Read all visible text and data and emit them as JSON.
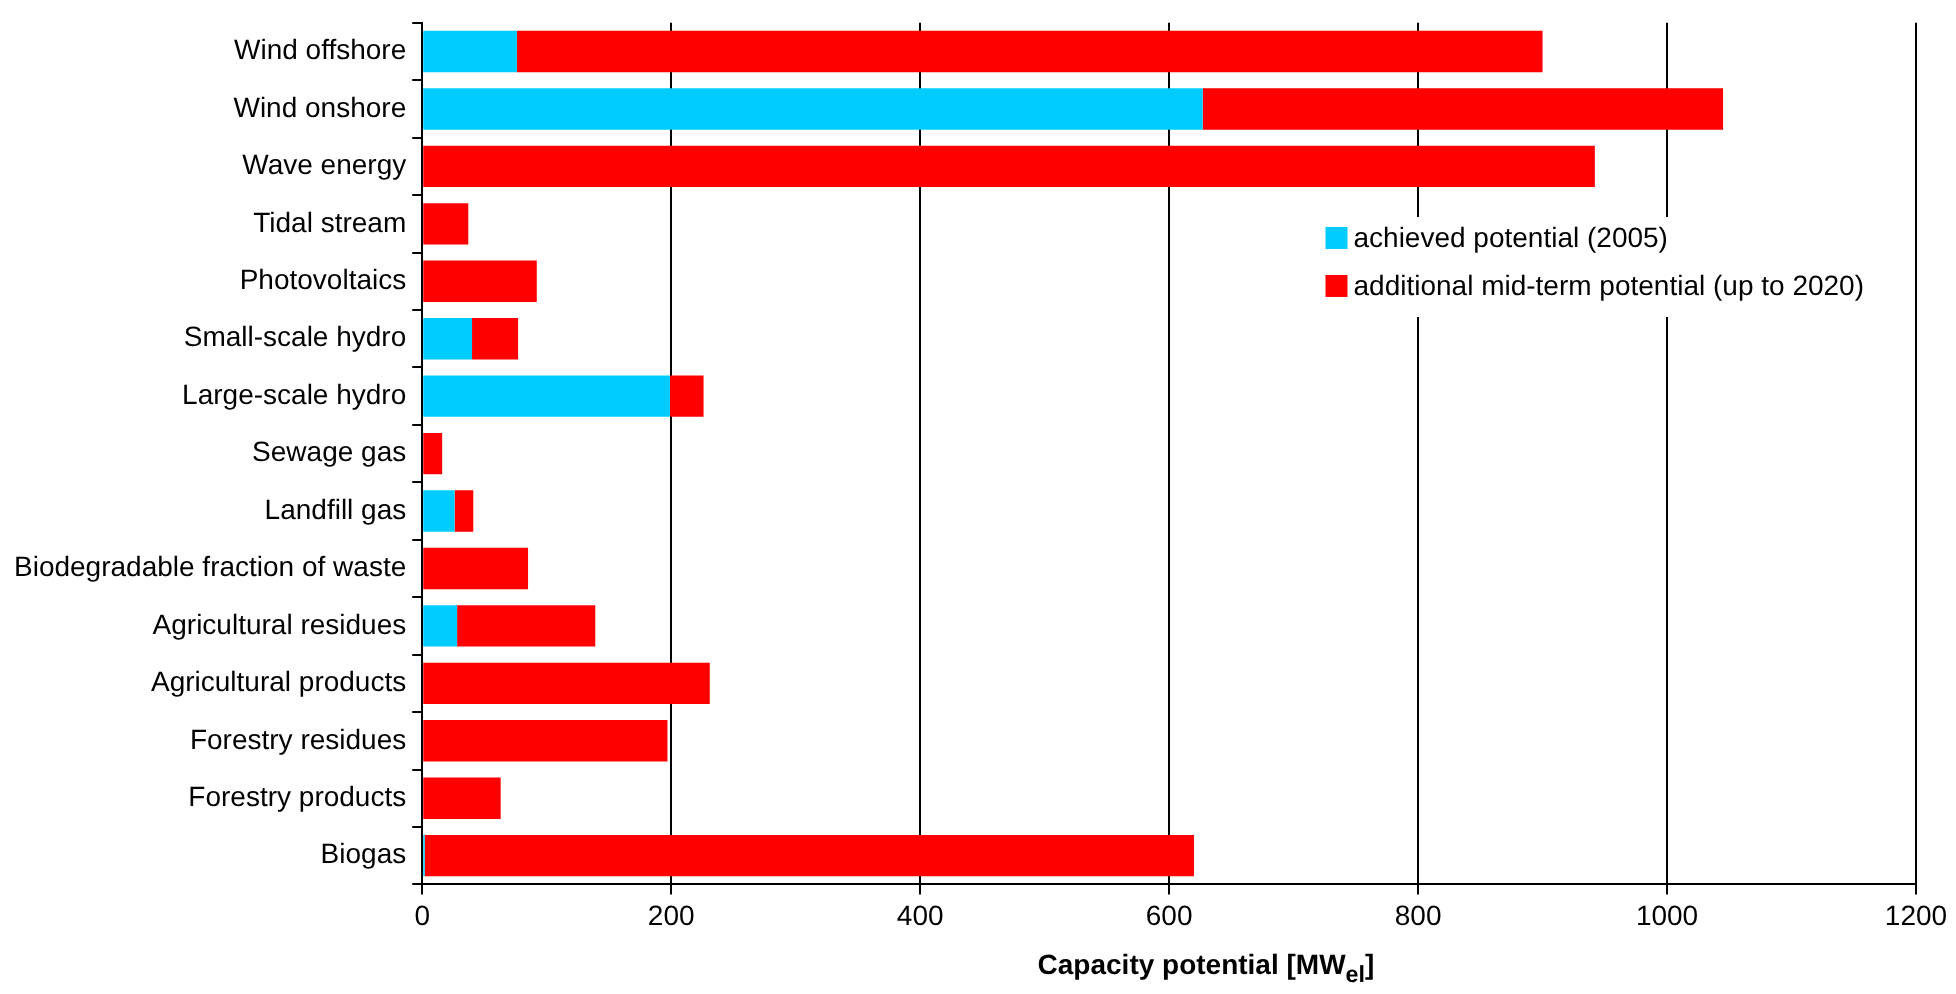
{
  "chart_data": {
    "type": "bar",
    "orientation": "horizontal",
    "stacked": true,
    "categories": [
      "Wind offshore",
      "Wind onshore",
      "Wave energy",
      "Tidal stream",
      "Photovoltaics",
      "Small-scale hydro",
      "Large-scale hydro",
      "Sewage gas",
      "Landfill gas",
      "Biodegradable fraction of waste",
      "Agricultural residues",
      "Agricultural products",
      "Forestry residues",
      "Forestry products",
      "Biogas"
    ],
    "series": [
      {
        "name": "achieved potential (2005)",
        "color": "#00ccff",
        "values": [
          76,
          627,
          0,
          0,
          0,
          40,
          199,
          0,
          26,
          0,
          28,
          0,
          0,
          0,
          2
        ]
      },
      {
        "name": "additional mid-term potential (up to 2020)",
        "color": "#ff0000",
        "values": [
          824,
          418,
          942,
          37,
          92,
          37,
          27,
          16,
          15,
          85,
          111,
          231,
          197,
          63,
          618
        ]
      }
    ],
    "xlabel": "Capacity potential [MW$_{el}$]",
    "xlim": [
      0,
      1200
    ],
    "xticks": [
      0,
      200,
      400,
      600,
      800,
      1000,
      1200
    ],
    "grid": "x",
    "legend": "right"
  }
}
